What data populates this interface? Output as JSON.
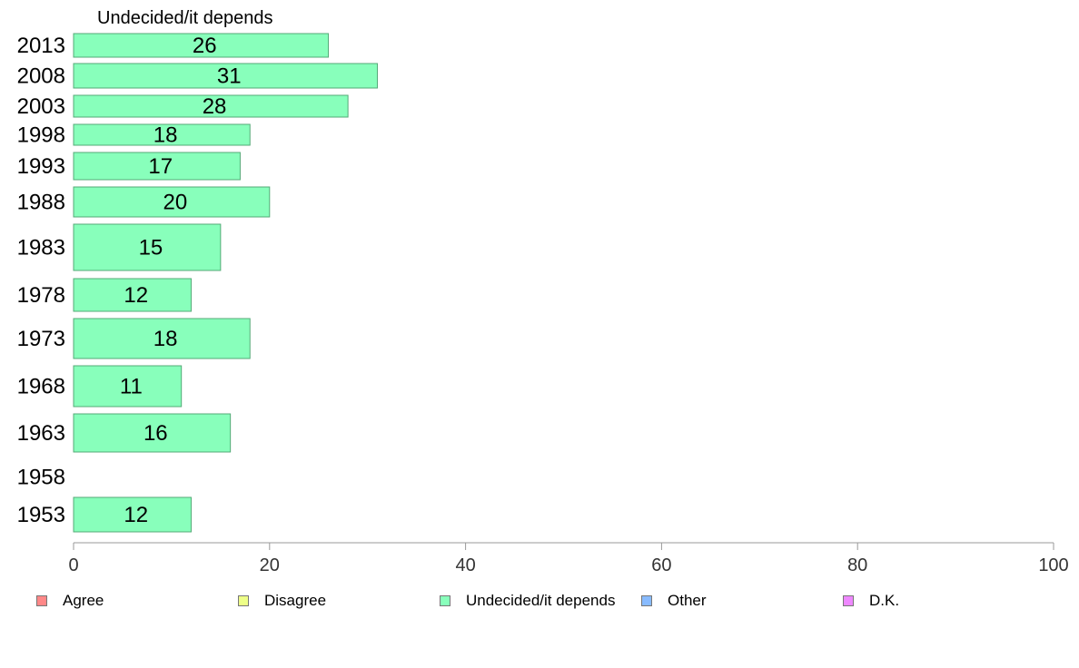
{
  "chart_data": {
    "type": "bar",
    "orientation": "horizontal",
    "title": "Undecided/it depends",
    "categories": [
      "2013",
      "2008",
      "2003",
      "1998",
      "1993",
      "1988",
      "1983",
      "1978",
      "1973",
      "1968",
      "1963",
      "1958",
      "1953"
    ],
    "series": [
      {
        "name": "Undecided/it depends",
        "color": "#88ffbb",
        "values": [
          26,
          31,
          28,
          18,
          17,
          20,
          15,
          12,
          18,
          11,
          16,
          null,
          12
        ]
      }
    ],
    "xlim": [
      0,
      100
    ],
    "xticks": [
      0,
      20,
      40,
      60,
      80,
      100
    ],
    "grid": false,
    "legend_position": "bottom"
  },
  "legend": [
    {
      "label": "Agree",
      "color": "#ff8888"
    },
    {
      "label": "Disagree",
      "color": "#eeff88"
    },
    {
      "label": "Undecided/it depends",
      "color": "#88ffbb"
    },
    {
      "label": "Other",
      "color": "#88bbff"
    },
    {
      "label": "D.K.",
      "color": "#ee88ff"
    }
  ]
}
